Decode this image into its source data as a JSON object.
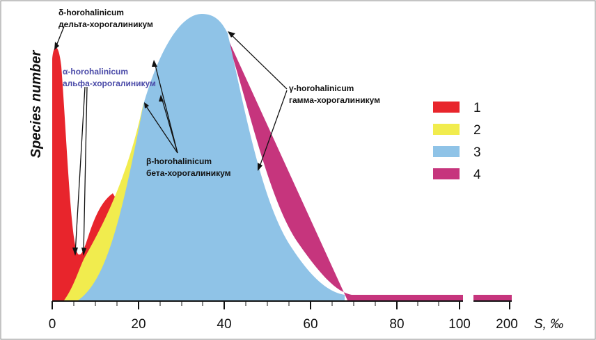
{
  "y_axis_label": "Species number",
  "x_axis": {
    "ticks": [
      "0",
      "20",
      "40",
      "60",
      "80",
      "100",
      "200"
    ],
    "unit_label": "S, ‰"
  },
  "annotations": {
    "delta": [
      "δ-horohalinicum",
      "дельта-хорогалиникум"
    ],
    "alpha": [
      "α-horohalinicum",
      "альфа-хорогалиникум"
    ],
    "beta": [
      "β-horohalinicum",
      "бета-хорогалиникум"
    ],
    "gamma": [
      "γ-horohalinicum",
      "гамма-хорогалиникум"
    ]
  },
  "legend": [
    "1",
    "2",
    "3",
    "4"
  ]
}
